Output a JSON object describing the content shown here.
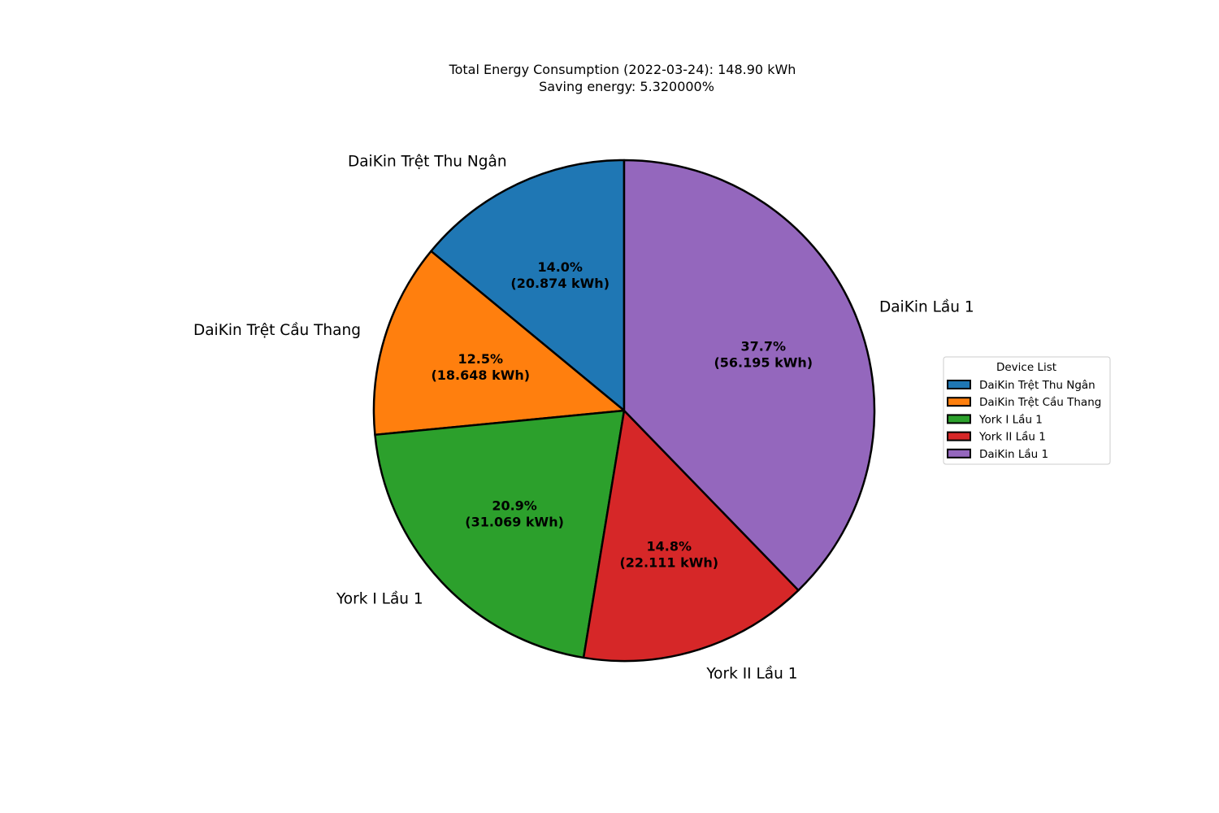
{
  "chart_data": {
    "type": "pie",
    "title_lines": [
      "Total Energy Consumption (2022-03-24): 148.90 kWh",
      "Saving energy: 5.320000%"
    ],
    "start_angle_deg": 90,
    "direction": "counterclockwise",
    "slices": [
      {
        "label": "DaiKin Trệt Thu Ngân",
        "value": 20.874,
        "percent_label": "14.0%",
        "value_label": "(20.874 kWh)",
        "color": "#1f77b4"
      },
      {
        "label": "DaiKin Trệt Cầu Thang",
        "value": 18.648,
        "percent_label": "12.5%",
        "value_label": "(18.648 kWh)",
        "color": "#ff7f0e"
      },
      {
        "label": "York I Lầu 1",
        "value": 31.069,
        "percent_label": "20.9%",
        "value_label": "(31.069 kWh)",
        "color": "#2ca02c"
      },
      {
        "label": "York II Lầu 1",
        "value": 22.111,
        "percent_label": "14.8%",
        "value_label": "(22.111 kWh)",
        "color": "#d62728"
      },
      {
        "label": "DaiKin Lầu 1",
        "value": 56.195,
        "percent_label": "37.7%",
        "value_label": "(56.195 kWh)",
        "color": "#9467bd"
      }
    ],
    "legend": {
      "title": "Device List",
      "placement": "right"
    },
    "edge_color": "#000000"
  }
}
